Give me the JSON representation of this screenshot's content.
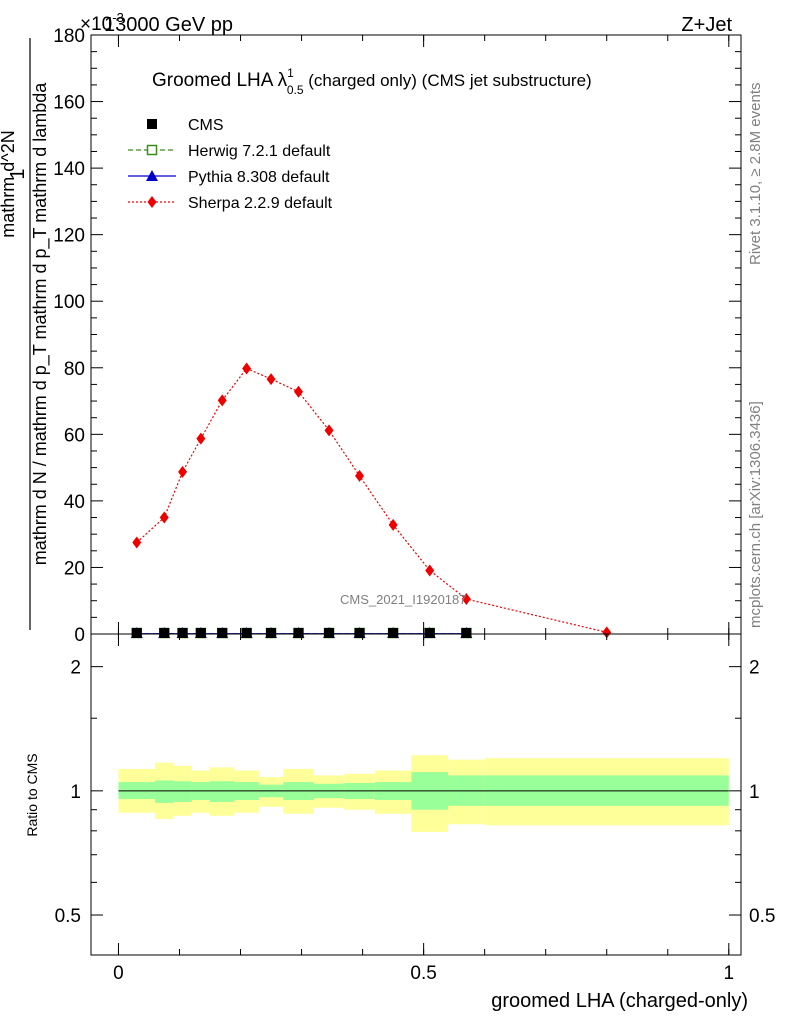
{
  "header": {
    "left": "13000 GeV pp",
    "right": "Z+Jet",
    "multiplier": "×10",
    "multiplier_exp": "-3"
  },
  "side_labels": {
    "rivet": "Rivet 3.1.10, ≥ 2.8M events",
    "mcplots": "mcplots.cern.ch [arXiv:1306.3436]"
  },
  "colors": {
    "cms": "#000000",
    "herwig": "#3a8c1c",
    "pythia": "#0000cc",
    "sherpa": "#ee0000",
    "band_inner": "#99ff99",
    "band_outer": "#ffff99"
  },
  "chart_data": [
    {
      "type": "line",
      "title": {
        "prefix": "Groomed LHA ",
        "symbol": "λ",
        "sup": "1",
        "sub": "0.5",
        "suffix": " (charged only) (CMS jet substructure)"
      },
      "ylabel": {
        "numerator": "1",
        "denominator": "mathrm d N / mathrm d p_T mathrm d p_T mathrm d lambda",
        "stack_top": "mathrm d^2N"
      },
      "watermark": "CMS_2021_I1920187",
      "xlim": [
        -0.045,
        1.02
      ],
      "ylim": [
        0,
        180
      ],
      "yticks": [
        0,
        20,
        40,
        60,
        80,
        100,
        120,
        140,
        160,
        180
      ],
      "legend_position": "top-left",
      "legend": [
        {
          "name": "CMS",
          "marker": "square-filled",
          "style": "none"
        },
        {
          "name": "Herwig 7.2.1 default",
          "marker": "square-open",
          "style": "dashed"
        },
        {
          "name": "Pythia 8.308 default",
          "marker": "triangle",
          "style": "solid"
        },
        {
          "name": "Sherpa 2.2.9 default",
          "marker": "diamond",
          "style": "dotted"
        }
      ],
      "x": [
        0.03,
        0.075,
        0.105,
        0.135,
        0.17,
        0.21,
        0.25,
        0.295,
        0.345,
        0.395,
        0.45,
        0.51,
        0.57,
        0.8
      ],
      "series": [
        {
          "name": "CMS",
          "values": [
            0.1,
            0.1,
            0.1,
            0.1,
            0.1,
            0.1,
            0.1,
            0.1,
            0.1,
            0.1,
            0.1,
            0.1,
            0.1,
            null
          ]
        },
        {
          "name": "Herwig 7.2.1 default",
          "values": [
            0.1,
            0.1,
            0.1,
            0.1,
            0.1,
            0.1,
            0.1,
            0.1,
            0.1,
            0.1,
            0.1,
            0.1,
            0.1,
            null
          ]
        },
        {
          "name": "Pythia 8.308 default",
          "values": [
            0.1,
            0.1,
            0.1,
            0.1,
            0.1,
            0.1,
            0.1,
            0.1,
            0.1,
            0.1,
            0.1,
            0.1,
            0.1,
            null
          ]
        },
        {
          "name": "Sherpa 2.2.9 default",
          "values": [
            27.5,
            35,
            48.7,
            58.7,
            70.2,
            79.8,
            76.6,
            72.8,
            61.2,
            47.5,
            32.8,
            19.1,
            10.5,
            0.5
          ]
        }
      ]
    },
    {
      "type": "area",
      "ylabel": "Ratio to CMS",
      "xlabel": "groomed LHA (charged-only)",
      "xlim": [
        -0.045,
        1.02
      ],
      "ylim": [
        0.4,
        2.4
      ],
      "log_y": true,
      "xticks": [
        "0",
        "0.5",
        "1"
      ],
      "xtick_values": [
        0,
        0.5,
        1
      ],
      "yticks": [
        "0.5",
        "1",
        "2"
      ],
      "ytick_values": [
        0.5,
        1,
        2
      ],
      "reference": 1,
      "bins": [
        {
          "lo": 0.0,
          "hi": 0.06,
          "inner": [
            0.955,
            1.05
          ],
          "outer": [
            0.885,
            1.13
          ]
        },
        {
          "lo": 0.06,
          "hi": 0.09,
          "inner": [
            0.935,
            1.06
          ],
          "outer": [
            0.855,
            1.17
          ]
        },
        {
          "lo": 0.09,
          "hi": 0.12,
          "inner": [
            0.94,
            1.055
          ],
          "outer": [
            0.87,
            1.15
          ]
        },
        {
          "lo": 0.12,
          "hi": 0.15,
          "inner": [
            0.95,
            1.05
          ],
          "outer": [
            0.885,
            1.12
          ]
        },
        {
          "lo": 0.15,
          "hi": 0.19,
          "inner": [
            0.94,
            1.055
          ],
          "outer": [
            0.87,
            1.14
          ]
        },
        {
          "lo": 0.19,
          "hi": 0.23,
          "inner": [
            0.95,
            1.05
          ],
          "outer": [
            0.885,
            1.12
          ]
        },
        {
          "lo": 0.23,
          "hi": 0.27,
          "inner": [
            0.965,
            1.035
          ],
          "outer": [
            0.915,
            1.08
          ]
        },
        {
          "lo": 0.27,
          "hi": 0.32,
          "inner": [
            0.95,
            1.05
          ],
          "outer": [
            0.88,
            1.13
          ]
        },
        {
          "lo": 0.32,
          "hi": 0.37,
          "inner": [
            0.96,
            1.04
          ],
          "outer": [
            0.91,
            1.09
          ]
        },
        {
          "lo": 0.37,
          "hi": 0.42,
          "inner": [
            0.955,
            1.045
          ],
          "outer": [
            0.9,
            1.1
          ]
        },
        {
          "lo": 0.42,
          "hi": 0.48,
          "inner": [
            0.95,
            1.05
          ],
          "outer": [
            0.88,
            1.12
          ]
        },
        {
          "lo": 0.48,
          "hi": 0.54,
          "inner": [
            0.9,
            1.11
          ],
          "outer": [
            0.795,
            1.22
          ]
        },
        {
          "lo": 0.54,
          "hi": 0.6,
          "inner": [
            0.92,
            1.09
          ],
          "outer": [
            0.83,
            1.19
          ]
        },
        {
          "lo": 0.6,
          "hi": 1.0,
          "inner": [
            0.92,
            1.09
          ],
          "outer": [
            0.825,
            1.2
          ]
        }
      ]
    }
  ]
}
